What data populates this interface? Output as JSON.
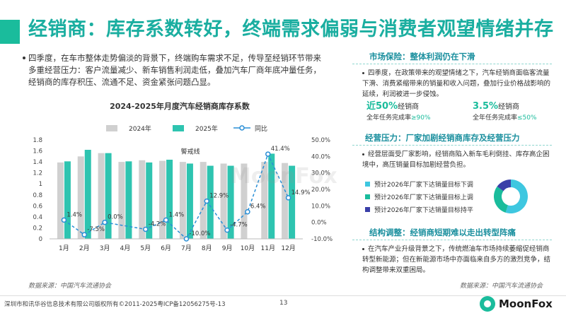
{
  "title": "经销商：库存系数转好，终端需求偏弱与消费者观望情绪并存",
  "intro": "四季度，在车市整体走势偏淡的背景下，终端购车需求不足，传导至经销环节带来多重经营压力：客户流量减少、新车销售利润走低，叠加汽车厂商年底冲量任务，经销商的库存积压、流通不足、资金紧张问题凸显。",
  "chart_data": {
    "type": "bar",
    "title": "2024-2025年月度汽车经销商库存系数",
    "categories": [
      "1月",
      "2月",
      "3月",
      "4月",
      "5月",
      "6月",
      "7月",
      "8月",
      "9月",
      "10月",
      "11月",
      "12月"
    ],
    "series": [
      {
        "name": "2024年",
        "kind": "bar",
        "color": "#d0d0d0",
        "values": [
          1.39,
          1.5,
          1.56,
          1.4,
          1.43,
          1.42,
          1.4,
          1.4,
          1.37,
          1.37,
          1.4,
          1.38
        ]
      },
      {
        "name": "2025年",
        "kind": "bar",
        "color": "#2ec4b0",
        "values": [
          1.41,
          1.62,
          1.56,
          1.41,
          1.39,
          1.44,
          1.37,
          1.33,
          1.33,
          null,
          1.55,
          1.33
        ]
      },
      {
        "name": "同比",
        "kind": "line",
        "color": "#2a8fd6",
        "values": [
          1.4,
          -7.5,
          0.0,
          null,
          -4.2,
          1.4,
          -10.0,
          12.9,
          -4.7,
          6.4,
          41.4,
          14.9
        ]
      }
    ],
    "point_labels": [
      "1.4%",
      "-7.5%",
      "0.0%",
      "",
      "-4.2%",
      "1.4%",
      "-10.0%",
      "12.9%",
      "-4.7%",
      "6.4%",
      "41.4%",
      "14.9%"
    ],
    "warning_label": "警戒线",
    "warning_value": 1.5,
    "y_left": {
      "min": 0,
      "max": 1.8,
      "ticks": [
        "0",
        "0.2",
        "0.4",
        "0.6",
        "0.8",
        "1",
        "1.2",
        "1.4",
        "1.6",
        "1.8"
      ]
    },
    "y_right": {
      "min": -10,
      "max": 50,
      "ticks": [
        "-10.0%",
        "0.0%",
        "10.0%",
        "20.0%",
        "30.0%",
        "40.0%",
        "50.0%"
      ]
    },
    "grid": false,
    "legend_position": "top"
  },
  "source_left": "数据来源：中国汽车流通协会",
  "source_right": "数据来源：中国汽车流通协会",
  "watermark": "MoonFox",
  "market": {
    "title": "市场保险：整体利润仍在下滑",
    "text": "四季度，在政策带来的观望情绪之下，汽车经销商面临客流量下滑、消费紧缩带来的销量和收入问题，叠加行业价格战影响的延续，利润被进一步侵蚀。",
    "m1_value": "近50%",
    "m1_unit": "经销商",
    "m1_sub": "全年任务完成率",
    "m1_cond": "≥90%",
    "m2_value": "3.5%",
    "m2_unit": "经销商",
    "m2_sub": "全年任务完成率",
    "m2_cond": "≤50%"
  },
  "pressure": {
    "title": "经营压力：厂家加剧经销商库存及经营压力",
    "text": "经营层面受厂家影响，经销商陷入新车毛利倒挂、库存高企困境中，高压销量目标加剧经营负担。",
    "legend": [
      {
        "label": "预计2026年厂家下达销量目标下调",
        "color": "#3ec7e0"
      },
      {
        "label": "预计2026年厂家下达销量目标上调",
        "color": "#1abc9c"
      },
      {
        "label": "预计2026年厂家下达销量目标持平",
        "color": "#3a3fa8"
      }
    ],
    "donut": [
      0.55,
      0.3,
      0.15
    ]
  },
  "structure": {
    "title": "结构调整：经销商短期难以走出转型阵痛",
    "text": "在汽车产业升级背景之下，传统燃油车市场持续萎缩促经销商转型新能源；但在新能源市场中亦面临来自多方的激烈竞争，结构调整带来双重困局。"
  },
  "footer": {
    "company": "深圳市和讯华谷信息技术有限公司版权所有©2011-2025粤ICP备12056275号-13",
    "page": "13",
    "brand": "MoonFox"
  }
}
